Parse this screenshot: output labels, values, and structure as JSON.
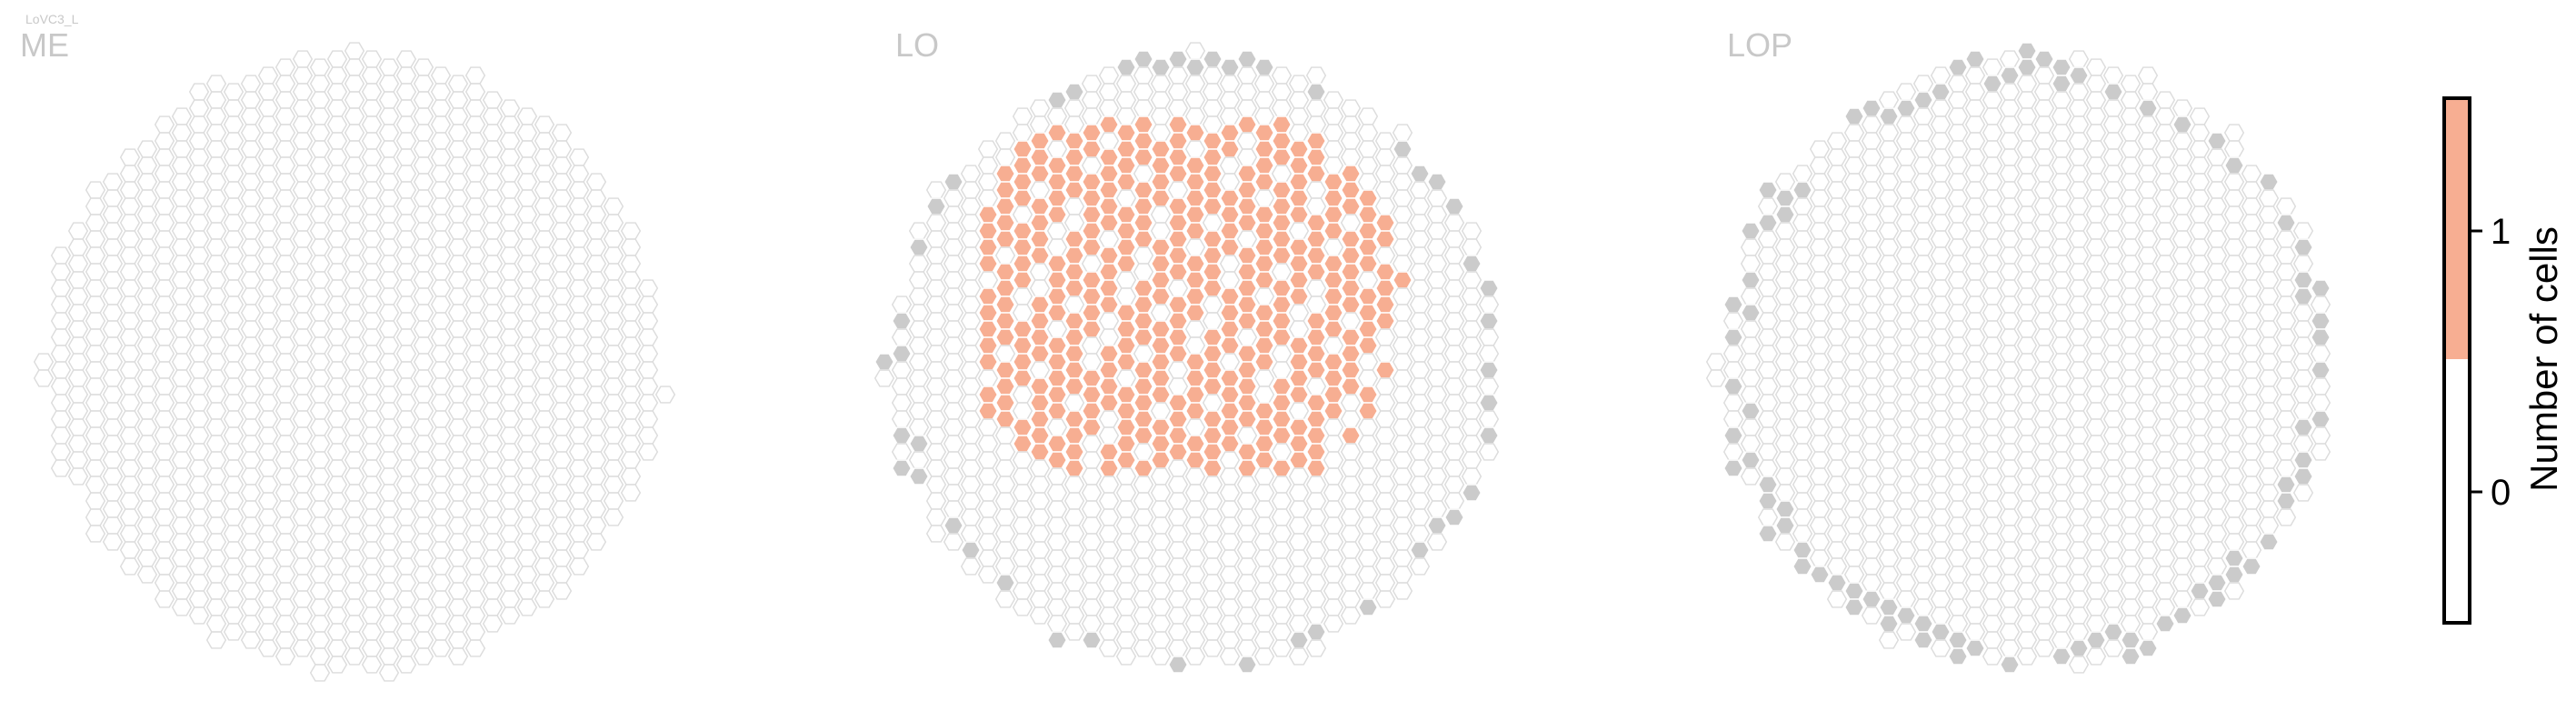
{
  "figure": {
    "cell_type_label": "LoVC3_L"
  },
  "chart_data": {
    "type": "heatmap",
    "description_of_marks": "hexagonal column grids per neuropil, cells colored by number of cells innervating each column",
    "panels": [
      {
        "name": "ME",
        "innervated_columns": 0,
        "has_missing_boundary_columns": false
      },
      {
        "name": "LO",
        "innervated_columns": 150,
        "has_missing_boundary_columns": true
      },
      {
        "name": "LOP",
        "innervated_columns": 0,
        "has_missing_boundary_columns": true
      }
    ],
    "colorbar": {
      "label": "Number of cells",
      "ticks": [
        "0",
        "1"
      ],
      "levels": [
        {
          "value": 0,
          "color": "#ffffff"
        },
        {
          "value": 1,
          "color": "#f7ae92"
        }
      ],
      "range": [
        -0.5,
        1.5
      ]
    },
    "colors": {
      "empty_column_outline": "#dcdcdc",
      "innervated_fill": "#f7ae92",
      "missing_column_fill": "#cbcbcb",
      "panel_label": "#c8c8c8"
    }
  }
}
